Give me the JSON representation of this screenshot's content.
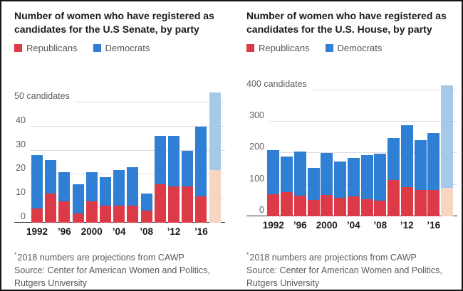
{
  "legend": {
    "republicans": "Republicans",
    "democrats": "Democrats"
  },
  "footer": {
    "note_marker": "*",
    "note": "2018 numbers are projections from CAWP",
    "source": "Source: Center for American Women and Politics, Rutgers University"
  },
  "colors": {
    "republican": "#dc3a46",
    "democrat": "#2f7fd4",
    "republican_projected": "#f7d5c3",
    "democrat_projected": "#a6c9e9",
    "grid": "#dcdcdc",
    "axis": "#2e2e2e"
  },
  "chart_data": [
    {
      "type": "bar",
      "stacked": true,
      "title": "Number of women who have registered as candidates for the U.S Senate, by party",
      "categories": [
        1992,
        1994,
        1996,
        1998,
        2000,
        2002,
        2004,
        2006,
        2008,
        2010,
        2012,
        2014,
        2016,
        2018
      ],
      "series": [
        {
          "name": "Republicans",
          "values": [
            6,
            12,
            9,
            4,
            9,
            7,
            7,
            7,
            5,
            16,
            15,
            15,
            11,
            22
          ]
        },
        {
          "name": "Democrats",
          "values": [
            22,
            14,
            12,
            12,
            12,
            12,
            15,
            16,
            7,
            20,
            21,
            15,
            29,
            32
          ]
        }
      ],
      "totals": [
        28,
        26,
        21,
        16,
        21,
        19,
        22,
        23,
        12,
        36,
        36,
        30,
        40,
        54
      ],
      "projected_category": 2018,
      "projection_note": "2018 bar shown in lighter shades (projection)",
      "x_tick_labels": [
        "1992",
        "’96",
        "2000",
        "’04",
        "’08",
        "’12",
        "’16"
      ],
      "y_ticks": [
        0,
        10,
        20,
        30,
        40,
        50
      ],
      "y_top_tick_label": "50 candidates",
      "ylim": [
        0,
        50
      ],
      "grid": true,
      "legend_position": "top-left"
    },
    {
      "type": "bar",
      "stacked": true,
      "title": "Number of women who have registered as candidates for the U.S. House, by party",
      "categories": [
        1992,
        1994,
        1996,
        1998,
        2000,
        2002,
        2004,
        2006,
        2008,
        2010,
        2012,
        2014,
        2016,
        2018
      ],
      "series": [
        {
          "name": "Republicans",
          "values": [
            70,
            76,
            66,
            53,
            67,
            58,
            64,
            55,
            49,
            114,
            93,
            83,
            83,
            90
          ]
        },
        {
          "name": "Democrats",
          "values": [
            140,
            114,
            139,
            100,
            134,
            116,
            122,
            140,
            150,
            134,
            196,
            158,
            180,
            325
          ]
        }
      ],
      "totals": [
        210,
        190,
        205,
        153,
        201,
        174,
        186,
        195,
        199,
        248,
        289,
        241,
        263,
        415
      ],
      "projected_category": 2018,
      "projection_note": "2018 bar shown in lighter shades (projection)",
      "x_tick_labels": [
        "1992",
        "’96",
        "2000",
        "’04",
        "’08",
        "’12",
        "’16"
      ],
      "y_ticks": [
        0,
        100,
        200,
        300,
        400
      ],
      "y_top_tick_label": "400 candidates",
      "ylim": [
        0,
        400
      ],
      "grid": true,
      "legend_position": "top-left"
    }
  ]
}
